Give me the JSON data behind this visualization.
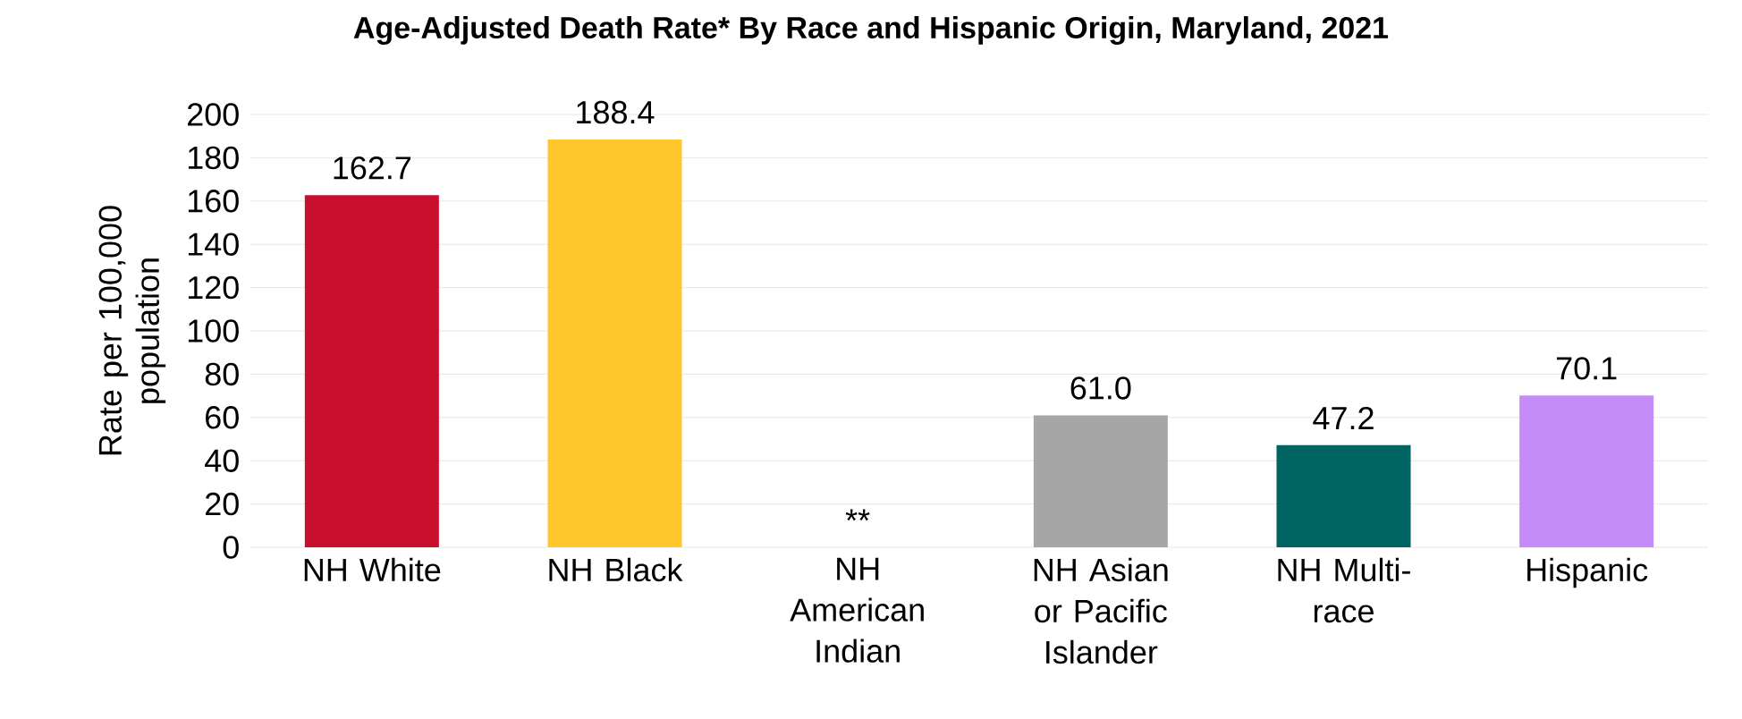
{
  "chart_data": {
    "type": "bar",
    "title": "Age-Adjusted Death Rate* By Race and Hispanic Origin, Maryland, 2021",
    "ylabel": "Rate per 100,000 population",
    "categories": [
      "NH White",
      "NH Black",
      "NH American Indian",
      "NH Asian or Pacific Islander",
      "NH Multi-race",
      "Hispanic"
    ],
    "values": [
      162.7,
      188.4,
      null,
      61.0,
      47.2,
      70.1
    ],
    "value_labels": [
      "162.7",
      "188.4",
      "**",
      "61.0",
      "47.2",
      "70.1"
    ],
    "colors": [
      "#c8102e",
      "#ffc72c",
      "#a6a6a6",
      "#a6a6a6",
      "#006462",
      "#c58cf8"
    ],
    "ylim": [
      0,
      200
    ],
    "yticks": [
      0,
      20,
      40,
      60,
      80,
      100,
      120,
      140,
      160,
      180,
      200
    ],
    "grid": "y"
  }
}
